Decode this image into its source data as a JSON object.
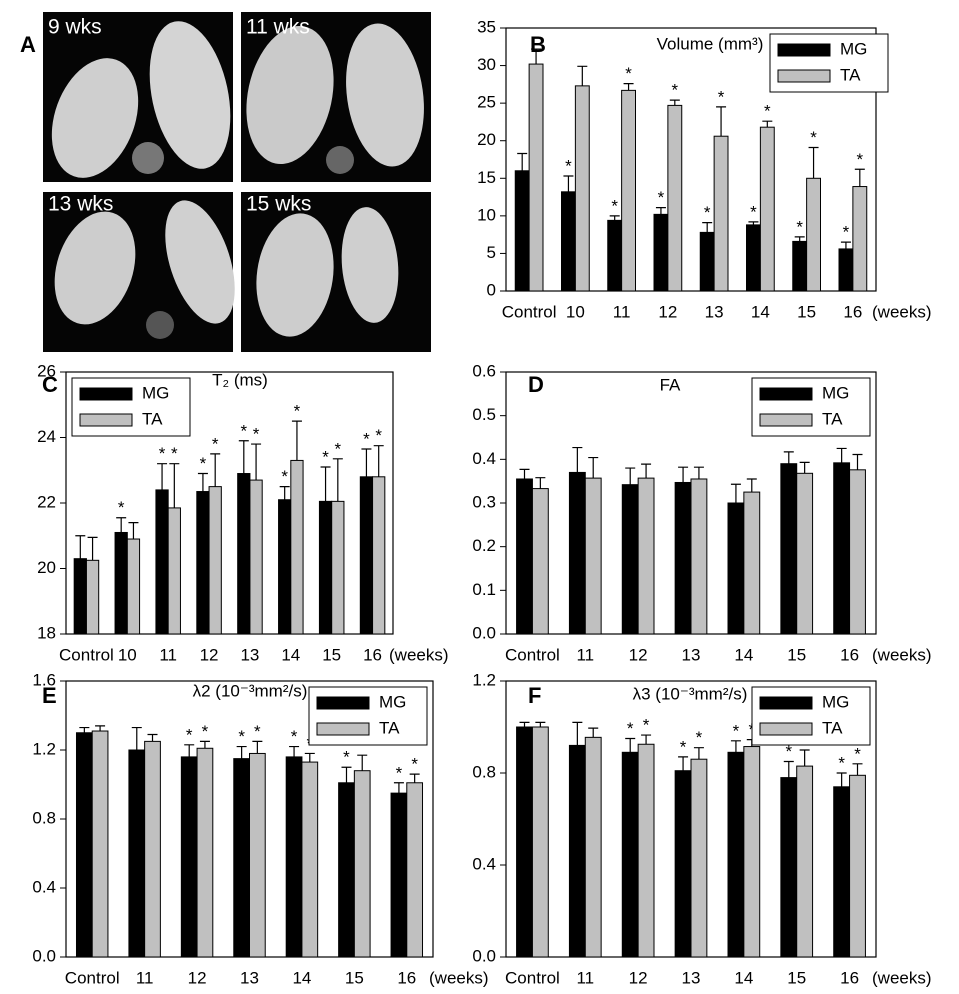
{
  "panel_a": {
    "label": "A",
    "images": [
      {
        "label": "9  wks"
      },
      {
        "label": "11 wks"
      },
      {
        "label": "13 wks"
      },
      {
        "label": "15 wks"
      }
    ]
  },
  "chart_data": [
    {
      "type": "bar",
      "label": "B",
      "title": "Volume (mm³)",
      "x_label": "(weeks)",
      "legend": "upper right",
      "categories": [
        "Control",
        "10",
        "11",
        "12",
        "13",
        "14",
        "15",
        "16"
      ],
      "ylim": [
        0,
        35
      ],
      "yticks": [
        0,
        5,
        10,
        15,
        20,
        25,
        30,
        35
      ],
      "series": [
        {
          "name": "MG",
          "color": "#000000",
          "values": [
            16,
            13.2,
            9.4,
            10.2,
            7.8,
            8.8,
            6.6,
            5.6
          ],
          "errors": [
            2.3,
            2.1,
            0.6,
            0.9,
            1.3,
            0.4,
            0.6,
            0.9
          ],
          "significance": [
            null,
            "*",
            "*",
            "*",
            "*",
            "*",
            "*",
            "*"
          ]
        },
        {
          "name": "TA",
          "color": "#c0c0c0",
          "values": [
            30.2,
            27.3,
            26.7,
            24.7,
            20.6,
            21.8,
            15,
            13.9
          ],
          "errors": [
            2,
            2.6,
            0.9,
            0.7,
            3.9,
            0.8,
            4.1,
            2.3
          ],
          "significance": [
            null,
            null,
            "*",
            "*",
            "*",
            "*",
            "*",
            "*"
          ]
        }
      ]
    },
    {
      "type": "bar",
      "label": "C",
      "title": "T₂ (ms)",
      "x_label": "(weeks)",
      "legend": "upper left",
      "categories": [
        "Control",
        "10",
        "11",
        "12",
        "13",
        "14",
        "15",
        "16"
      ],
      "ylim": [
        18,
        26
      ],
      "yticks": [
        18,
        20,
        22,
        24,
        26
      ],
      "series": [
        {
          "name": "MG",
          "color": "#000000",
          "values": [
            20.3,
            21.1,
            22.4,
            22.35,
            22.9,
            22.1,
            22.05,
            22.8
          ],
          "errors": [
            0.7,
            0.45,
            0.8,
            0.55,
            1.0,
            0.4,
            1.05,
            0.85
          ],
          "significance": [
            null,
            "*",
            "*",
            "*",
            "*",
            "*",
            "*",
            "*"
          ]
        },
        {
          "name": "TA",
          "color": "#c0c0c0",
          "values": [
            20.25,
            20.9,
            21.85,
            22.5,
            22.7,
            23.3,
            22.05,
            22.8
          ],
          "errors": [
            0.7,
            0.5,
            1.35,
            1.0,
            1.1,
            1.2,
            1.3,
            0.95
          ],
          "significance": [
            null,
            null,
            "*",
            "*",
            "*",
            "*",
            "*",
            "*"
          ]
        }
      ]
    },
    {
      "type": "bar",
      "label": "D",
      "title": "FA",
      "x_label": "(weeks)",
      "legend": "upper right",
      "categories": [
        "Control",
        "11",
        "12",
        "13",
        "14",
        "15",
        "16"
      ],
      "ylim": [
        0,
        0.6
      ],
      "yticks": [
        {
          "value": 0,
          "label": "0.0"
        },
        0.1,
        0.2,
        0.3,
        0.4,
        0.5,
        0.6
      ],
      "series": [
        {
          "name": "MG",
          "color": "#000000",
          "values": [
            0.355,
            0.37,
            0.342,
            0.347,
            0.3,
            0.39,
            0.392
          ],
          "errors": [
            0.022,
            0.057,
            0.038,
            0.035,
            0.043,
            0.027,
            0.033
          ]
        },
        {
          "name": "TA",
          "color": "#c0c0c0",
          "values": [
            0.333,
            0.357,
            0.357,
            0.355,
            0.325,
            0.368,
            0.376
          ],
          "errors": [
            0.025,
            0.047,
            0.032,
            0.027,
            0.03,
            0.025,
            0.035
          ]
        }
      ]
    },
    {
      "type": "bar",
      "label": "E",
      "title": "λ2  (10⁻³mm²/s)",
      "x_label": "(weeks)",
      "legend": "upper right",
      "categories": [
        "Control",
        "11",
        "12",
        "13",
        "14",
        "15",
        "16"
      ],
      "ylim": [
        0,
        1.6
      ],
      "yticks": [
        {
          "value": 0,
          "label": "0.0"
        },
        0.4,
        0.8,
        1.2,
        1.6
      ],
      "series": [
        {
          "name": "MG",
          "color": "#000000",
          "values": [
            1.3,
            1.2,
            1.16,
            1.15,
            1.16,
            1.01,
            0.95
          ],
          "errors": [
            0.03,
            0.13,
            0.07,
            0.07,
            0.06,
            0.09,
            0.06
          ],
          "significance": [
            null,
            null,
            "*",
            "*",
            "*",
            "*",
            "*"
          ]
        },
        {
          "name": "TA",
          "color": "#c0c0c0",
          "values": [
            1.31,
            1.25,
            1.21,
            1.18,
            1.13,
            1.08,
            1.01
          ],
          "errors": [
            0.03,
            0.04,
            0.04,
            0.07,
            0.05,
            0.09,
            0.05
          ],
          "significance": [
            null,
            null,
            "*",
            "*",
            "*",
            "*",
            "*"
          ]
        }
      ]
    },
    {
      "type": "bar",
      "label": "F",
      "title": "λ3  (10⁻³mm²/s)",
      "x_label": "(weeks)",
      "legend": "upper right",
      "categories": [
        "Control",
        "11",
        "12",
        "13",
        "14",
        "15",
        "16"
      ],
      "ylim": [
        0,
        1.2
      ],
      "yticks": [
        {
          "value": 0,
          "label": "0.0"
        },
        0.4,
        0.8,
        1.2
      ],
      "series": [
        {
          "name": "MG",
          "color": "#000000",
          "values": [
            1.0,
            0.92,
            0.89,
            0.81,
            0.89,
            0.78,
            0.74
          ],
          "errors": [
            0.02,
            0.1,
            0.06,
            0.06,
            0.05,
            0.07,
            0.06
          ],
          "significance": [
            null,
            null,
            "*",
            "*",
            "*",
            "*",
            "*"
          ]
        },
        {
          "name": "TA",
          "color": "#c0c0c0",
          "values": [
            1.0,
            0.955,
            0.925,
            0.86,
            0.915,
            0.83,
            0.79
          ],
          "errors": [
            0.02,
            0.04,
            0.04,
            0.05,
            0.03,
            0.07,
            0.05
          ],
          "significance": [
            null,
            null,
            "*",
            "*",
            "*",
            "*",
            "*"
          ]
        }
      ]
    }
  ]
}
